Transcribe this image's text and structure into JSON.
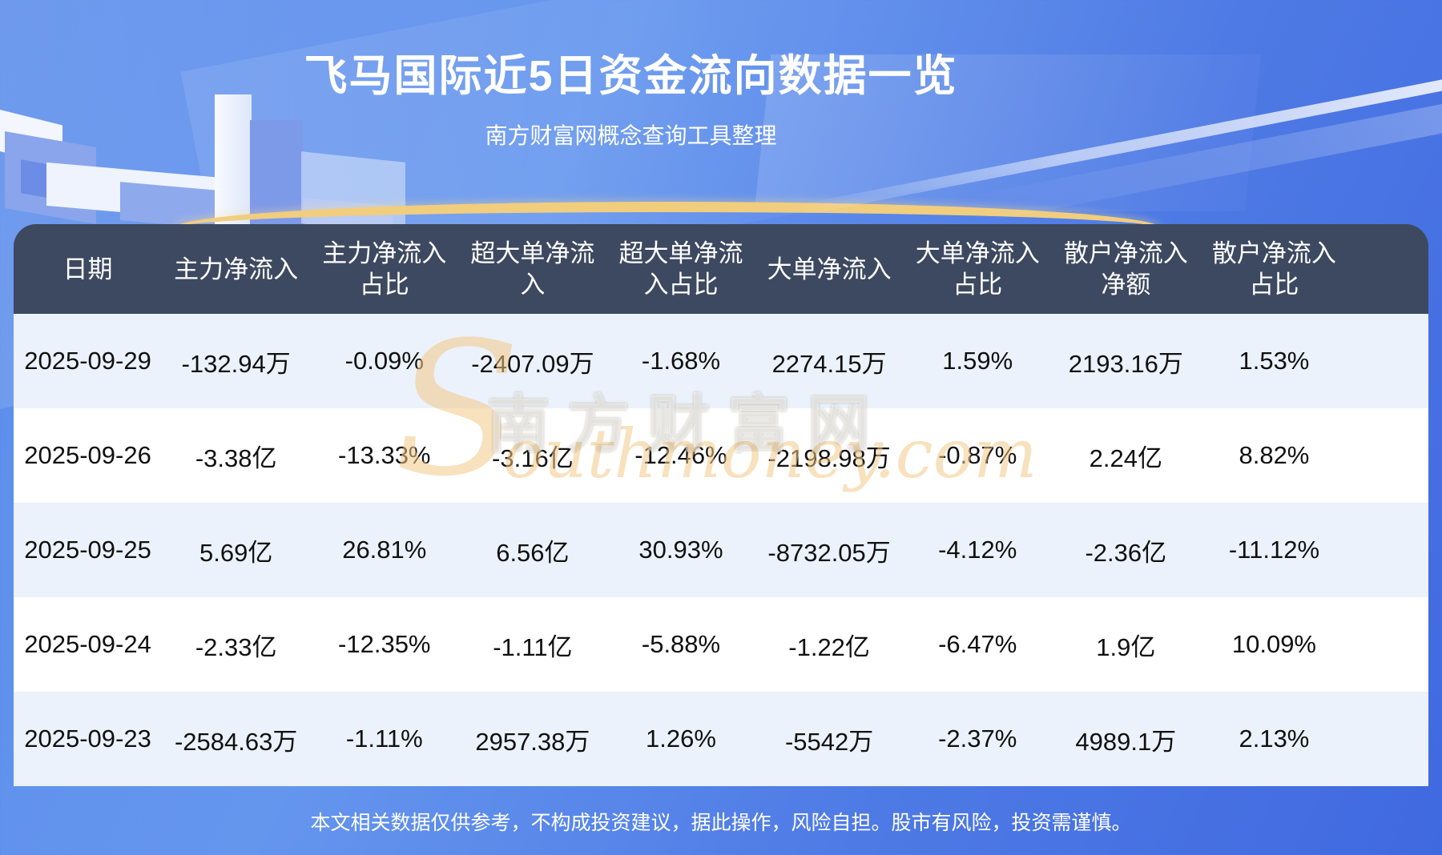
{
  "page": {
    "title": "飞马国际近5日资金流向数据一览",
    "subtitle": "南方财富网概念查询工具整理",
    "footer": "本文相关数据仅供参考，不构成投资建议，据此操作，风险自担。股市有风险，投资需谨慎。"
  },
  "watermark": {
    "initial": "S",
    "brand": "南方财富网",
    "domain": "outhmoney.com"
  },
  "colors": {
    "header_bg": "#3d4960",
    "row_alt_bg": "#ebf2fb",
    "row_plain_bg": "#ffffff",
    "page_blue": "#4e7ae5",
    "gold_arc": "#f1cd7e",
    "watermark_orange": "#f3c887"
  },
  "chart_data": {
    "type": "table",
    "title": "飞马国际近5日资金流向数据一览",
    "columns": [
      "日期",
      "主力净流入",
      "主力净流入\n占比",
      "超大单净流\n入",
      "超大单净流\n入占比",
      "大单净流入",
      "大单净流入\n占比",
      "散户净流入\n净额",
      "散户净流入\n占比"
    ],
    "rows": [
      [
        "2025-09-29",
        "-132.94万",
        "-0.09%",
        "-2407.09万",
        "-1.68%",
        "2274.15万",
        "1.59%",
        "2193.16万",
        "1.53%"
      ],
      [
        "2025-09-26",
        "-3.38亿",
        "-13.33%",
        "-3.16亿",
        "-12.46%",
        "-2198.98万",
        "-0.87%",
        "2.24亿",
        "8.82%"
      ],
      [
        "2025-09-25",
        "5.69亿",
        "26.81%",
        "6.56亿",
        "30.93%",
        "-8732.05万",
        "-4.12%",
        "-2.36亿",
        "-11.12%"
      ],
      [
        "2025-09-24",
        "-2.33亿",
        "-12.35%",
        "-1.11亿",
        "-5.88%",
        "-1.22亿",
        "-6.47%",
        "1.9亿",
        "10.09%"
      ],
      [
        "2025-09-23",
        "-2584.63万",
        "-1.11%",
        "2957.38万",
        "1.26%",
        "-5542万",
        "-2.37%",
        "4989.1万",
        "2.13%"
      ]
    ]
  }
}
